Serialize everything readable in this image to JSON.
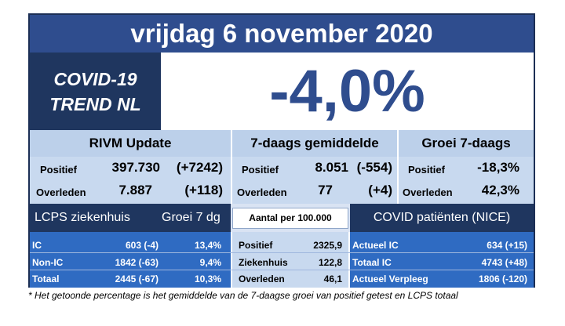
{
  "title": "vrijdag 6 november 2020",
  "covid_trend": {
    "line1": "COVID-19",
    "line2": "TREND NL"
  },
  "trend_percentage": "-4,0%",
  "sections": {
    "rivm": {
      "header": "RIVM Update",
      "rows": [
        {
          "label": "Positief",
          "value": "397.730",
          "change": "(+7242)"
        },
        {
          "label": "Overleden",
          "value": "7.887",
          "change": "(+118)"
        }
      ]
    },
    "avg7": {
      "header": "7-daags gemiddelde",
      "rows": [
        {
          "label": "Positief",
          "value": "8.051",
          "change": "(-554)"
        },
        {
          "label": "Overleden",
          "value": "77",
          "change": "(+4)"
        }
      ]
    },
    "growth7": {
      "header": "Groei 7-daags",
      "rows": [
        {
          "label": "Positief",
          "value": "-18,3%"
        },
        {
          "label": "Overleden",
          "value": "42,3%"
        }
      ]
    }
  },
  "lcps": {
    "header": "LCPS ziekenhuis",
    "growth_header": "Groei 7 dg",
    "rows": [
      {
        "label": "IC",
        "value": "603 (-4)",
        "growth": "13,4%"
      },
      {
        "label": "Non-IC",
        "value": "1842 (-63)",
        "growth": "9,4%"
      },
      {
        "label": "Totaal",
        "value": "2445 (-67)",
        "growth": "10,3%"
      }
    ]
  },
  "per100k": {
    "header": "Aantal per 100.000",
    "rows": [
      {
        "label": "Positief",
        "value": "2325,9"
      },
      {
        "label": "Ziekenhuis",
        "value": "122,8"
      },
      {
        "label": "Overleden",
        "value": "46,1"
      }
    ]
  },
  "nice": {
    "header": "COVID patiënten (NICE)",
    "rows": [
      {
        "label": "Actueel IC",
        "value": "634 (+15)"
      },
      {
        "label": "Totaal IC",
        "value": "4743 (+48)"
      },
      {
        "label": "Actueel Verpleeg",
        "value": "1806 (-120)"
      }
    ]
  },
  "footnote": "* Het getoonde percentage is het gemiddelde van de 7-daagse groei van positief getest en LCPS totaal",
  "colors": {
    "dark_blue": "#1f365f",
    "mid_blue": "#2f4d8e",
    "light_blue": "#c8d9ef",
    "row_blue": "#2f6bc2"
  }
}
